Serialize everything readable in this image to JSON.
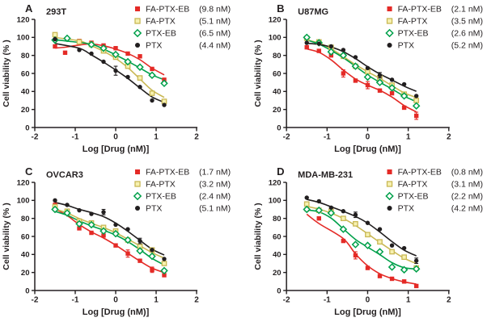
{
  "figure": {
    "xlabel": "Log [Drug (nM)]",
    "ylabel": "Cell viability (% )",
    "ink_color": "#231f20",
    "background": "#ffffff"
  },
  "chart_data": [
    {
      "type": "scatter",
      "panel_letter": "A",
      "title": "293T",
      "xlabel": "Log [Drug (nM)]",
      "ylabel": "Cell viability (% )",
      "xlim": [
        -2,
        2
      ],
      "ylim": [
        0,
        120
      ],
      "xticks": [
        -2,
        -1,
        0,
        1,
        2
      ],
      "yticks": [
        0,
        20,
        40,
        60,
        80,
        100,
        120
      ],
      "legend_position": "top-right",
      "series": [
        {
          "name": "FA-PTX-EB",
          "ic50": "9.8 nM",
          "marker": "square-filled",
          "color": "#e42a26",
          "fill": "#e42a26",
          "x": [
            -1.5,
            -1.25,
            -0.9,
            -0.6,
            -0.3,
            0,
            0.3,
            0.6,
            0.9,
            1.2
          ],
          "y": [
            90,
            83,
            96,
            94,
            91,
            88,
            82,
            79,
            65,
            53
          ],
          "err": [
            0,
            0,
            0,
            0,
            0,
            0,
            0,
            0,
            0,
            0
          ]
        },
        {
          "name": "FA-PTX",
          "ic50": "5.1 nM",
          "marker": "square-open",
          "color": "#c9b855",
          "fill": "#f7f1b0",
          "x": [
            -1.5,
            -0.9,
            -0.6,
            -0.3,
            0,
            0.3,
            0.6,
            0.9,
            1.2
          ],
          "y": [
            103,
            95,
            92,
            85,
            78,
            68,
            55,
            38,
            29
          ],
          "err": [
            0,
            0,
            0,
            0,
            0,
            0,
            0,
            0,
            0
          ]
        },
        {
          "name": "PTX-EB",
          "ic50": "6.5 nM",
          "marker": "diamond-open",
          "color": "#00a04a",
          "fill": "#ffffff",
          "x": [
            -1.5,
            -1.2,
            -0.6,
            -0.3,
            0,
            0.3,
            0.6,
            0.9,
            1.2
          ],
          "y": [
            97,
            99,
            92,
            88,
            81,
            73,
            67,
            58,
            49
          ],
          "err": [
            0,
            0,
            0,
            0,
            0,
            0,
            0,
            0,
            0
          ]
        },
        {
          "name": "PTX",
          "ic50": "4.4 nM",
          "marker": "circle-filled",
          "color": "#211e1f",
          "fill": "#211e1f",
          "x": [
            -1.5,
            -0.9,
            -0.6,
            -0.3,
            0,
            0.3,
            0.6,
            0.9,
            1.2
          ],
          "y": [
            98,
            86,
            82,
            73,
            63,
            56,
            45,
            30,
            25
          ],
          "err": [
            0,
            0,
            0,
            0,
            5,
            0,
            0,
            0,
            0
          ]
        }
      ]
    },
    {
      "type": "scatter",
      "panel_letter": "B",
      "title": "U87MG",
      "xlabel": "Log [Drug (nM)]",
      "ylabel": "Cell viability (% )",
      "xlim": [
        -2,
        2
      ],
      "ylim": [
        0,
        120
      ],
      "xticks": [
        -2,
        -1,
        0,
        1,
        2
      ],
      "yticks": [
        0,
        20,
        40,
        60,
        80,
        100,
        120
      ],
      "legend_position": "top-right",
      "series": [
        {
          "name": "FA-PTX-EB",
          "ic50": "2.1 nM",
          "marker": "square-filled",
          "color": "#e42a26",
          "fill": "#e42a26",
          "x": [
            -1.5,
            -1.2,
            -0.9,
            -0.6,
            -0.3,
            0,
            0.3,
            0.6,
            0.9,
            1.2
          ],
          "y": [
            89,
            85,
            80,
            60,
            52,
            47,
            41,
            38,
            22,
            13
          ],
          "err": [
            0,
            0,
            0,
            4,
            0,
            4,
            0,
            0,
            0,
            4
          ]
        },
        {
          "name": "FA-PTX",
          "ic50": "3.5 nM",
          "marker": "square-open",
          "color": "#c9b855",
          "fill": "#f7f1b0",
          "x": [
            -1.5,
            -1.2,
            -0.9,
            -0.6,
            -0.3,
            0,
            0.3,
            0.6,
            0.9,
            1.2
          ],
          "y": [
            99,
            95,
            89,
            79,
            68,
            62,
            55,
            47,
            37,
            30
          ],
          "err": [
            0,
            0,
            0,
            0,
            0,
            0,
            0,
            0,
            0,
            0
          ]
        },
        {
          "name": "PTX-EB",
          "ic50": "2.6 nM",
          "marker": "diamond-open",
          "color": "#00a04a",
          "fill": "#ffffff",
          "x": [
            -1.5,
            -1.2,
            -0.9,
            -0.6,
            -0.3,
            0,
            0.3,
            0.6,
            0.9,
            1.2
          ],
          "y": [
            100,
            94,
            84,
            80,
            68,
            56,
            50,
            44,
            35,
            24
          ],
          "err": [
            0,
            0,
            0,
            0,
            0,
            0,
            0,
            0,
            0,
            0
          ]
        },
        {
          "name": "PTX",
          "ic50": "5.2 nM",
          "marker": "circle-filled",
          "color": "#211e1f",
          "fill": "#211e1f",
          "x": [
            -1.5,
            -1.2,
            -0.9,
            -0.6,
            -0.3,
            0,
            0.3,
            0.6,
            0.9,
            1.2
          ],
          "y": [
            94,
            93,
            90,
            86,
            78,
            66,
            58,
            53,
            48,
            35
          ],
          "err": [
            0,
            0,
            0,
            0,
            0,
            0,
            3,
            0,
            0,
            0
          ]
        }
      ]
    },
    {
      "type": "scatter",
      "panel_letter": "C",
      "title": "OVCAR3",
      "xlabel": "Log [Drug (nM)]",
      "ylabel": "Cell viability (% )",
      "xlim": [
        -2,
        2
      ],
      "ylim": [
        0,
        120
      ],
      "xticks": [
        -2,
        -1,
        0,
        1,
        2
      ],
      "yticks": [
        0,
        20,
        40,
        60,
        80,
        100,
        120
      ],
      "legend_position": "top-right",
      "series": [
        {
          "name": "FA-PTX-EB",
          "ic50": "1.7 nM",
          "marker": "square-filled",
          "color": "#e42a26",
          "fill": "#e42a26",
          "x": [
            -1.5,
            -1.2,
            -0.9,
            -0.6,
            -0.3,
            0,
            0.3,
            0.6,
            0.9,
            1.2
          ],
          "y": [
            95,
            86,
            69,
            64,
            61,
            50,
            41,
            33,
            23,
            17
          ],
          "err": [
            0,
            0,
            0,
            0,
            0,
            0,
            4,
            0,
            3,
            0
          ]
        },
        {
          "name": "FA-PTX",
          "ic50": "3.2 nM",
          "marker": "square-open",
          "color": "#c9b855",
          "fill": "#f7f1b0",
          "x": [
            -1.5,
            -1.2,
            -0.9,
            -0.6,
            -0.3,
            0,
            0.3,
            0.6,
            0.9,
            1.2
          ],
          "y": [
            93,
            88,
            77,
            75,
            70,
            66,
            56,
            49,
            45,
            30
          ],
          "err": [
            0,
            0,
            0,
            0,
            0,
            0,
            0,
            0,
            0,
            0
          ]
        },
        {
          "name": "PTX-EB",
          "ic50": "2.4 nM",
          "marker": "diamond-open",
          "color": "#00a04a",
          "fill": "#ffffff",
          "x": [
            -1.5,
            -1.2,
            -0.9,
            -0.6,
            -0.3,
            0,
            0.3,
            0.6,
            0.9,
            1.2
          ],
          "y": [
            90,
            86,
            74,
            73,
            66,
            63,
            56,
            44,
            38,
            22
          ],
          "err": [
            0,
            0,
            0,
            0,
            0,
            0,
            0,
            0,
            0,
            0
          ]
        },
        {
          "name": "PTX",
          "ic50": "5.1 nM",
          "marker": "circle-filled",
          "color": "#211e1f",
          "fill": "#211e1f",
          "x": [
            -1.5,
            -1.2,
            -0.9,
            -0.6,
            -0.3,
            0,
            0.3,
            0.6,
            0.9,
            1.2
          ],
          "y": [
            100,
            95,
            89,
            85,
            87,
            73,
            68,
            55,
            45,
            35
          ],
          "err": [
            0,
            0,
            0,
            0,
            3,
            0,
            0,
            3,
            0,
            0
          ]
        }
      ]
    },
    {
      "type": "scatter",
      "panel_letter": "D",
      "title": "MDA-MB-231",
      "xlabel": "Log [Drug (nM)]",
      "ylabel": "Cell viability (% )",
      "xlim": [
        -2,
        2
      ],
      "ylim": [
        0,
        120
      ],
      "xticks": [
        -2,
        -1,
        0,
        1,
        2
      ],
      "yticks": [
        0,
        20,
        40,
        60,
        80,
        100,
        120
      ],
      "legend_position": "top-right",
      "series": [
        {
          "name": "FA-PTX-EB",
          "ic50": "0.8 nM",
          "marker": "square-filled",
          "color": "#e42a26",
          "fill": "#e42a26",
          "x": [
            -1.5,
            -1.2,
            -0.6,
            -0.3,
            0,
            0.3,
            0.6,
            0.9,
            1.2
          ],
          "y": [
            90,
            80,
            55,
            39,
            25,
            16,
            13,
            10,
            5
          ],
          "err": [
            0,
            0,
            0,
            4,
            0,
            0,
            0,
            0,
            0
          ]
        },
        {
          "name": "FA-PTX",
          "ic50": "3.1 nM",
          "marker": "square-open",
          "color": "#c9b855",
          "fill": "#f7f1b0",
          "x": [
            -1.5,
            -1.2,
            -0.9,
            -0.6,
            -0.3,
            0,
            0.3,
            0.6,
            0.9,
            1.2
          ],
          "y": [
            96,
            89,
            88,
            80,
            74,
            62,
            54,
            43,
            37,
            25
          ],
          "err": [
            0,
            0,
            0,
            0,
            0,
            0,
            0,
            0,
            0,
            0
          ]
        },
        {
          "name": "PTX-EB",
          "ic50": "2.2 nM",
          "marker": "diamond-open",
          "color": "#00a04a",
          "fill": "#ffffff",
          "x": [
            -1.5,
            -1.2,
            -0.9,
            -0.6,
            -0.3,
            0,
            0.3,
            0.6,
            0.9,
            1.2
          ],
          "y": [
            90,
            89,
            86,
            68,
            51,
            50,
            43,
            26,
            23,
            24
          ],
          "err": [
            0,
            0,
            0,
            0,
            0,
            0,
            0,
            0,
            0,
            0
          ]
        },
        {
          "name": "PTX",
          "ic50": "4.2 nM",
          "marker": "circle-filled",
          "color": "#211e1f",
          "fill": "#211e1f",
          "x": [
            -1.5,
            -1.2,
            -0.9,
            -0.6,
            -0.3,
            0,
            0.3,
            0.6,
            0.9,
            1.2
          ],
          "y": [
            103,
            99,
            92,
            88,
            84,
            75,
            68,
            50,
            47,
            33
          ],
          "err": [
            0,
            0,
            0,
            0,
            3,
            0,
            0,
            0,
            0,
            3
          ]
        }
      ]
    }
  ]
}
